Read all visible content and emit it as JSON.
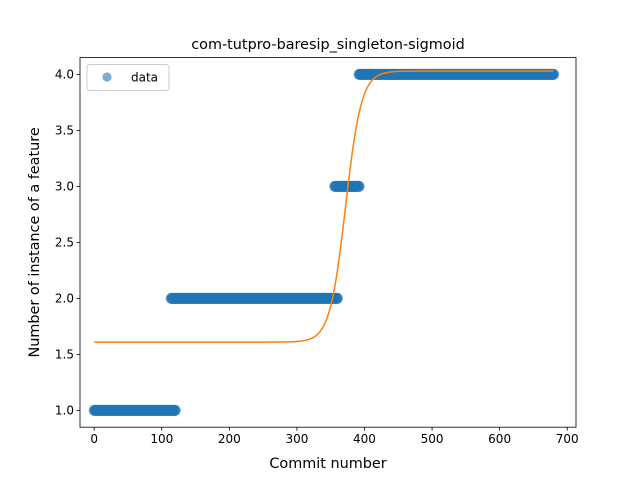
{
  "chart_data": {
    "type": "scatter",
    "title": "com-tutpro-baresip_singleton-sigmoid",
    "xlabel": "Commit number",
    "ylabel": "Number of instance of a feature",
    "xlim": [
      -21,
      713
    ],
    "ylim": [
      0.85,
      4.15
    ],
    "xticks": [
      0,
      100,
      200,
      300,
      400,
      500,
      600,
      700
    ],
    "xtick_labels": [
      "0",
      "100",
      "200",
      "300",
      "400",
      "500",
      "600",
      "700"
    ],
    "yticks": [
      1.0,
      1.5,
      2.0,
      2.5,
      3.0,
      3.5,
      4.0
    ],
    "ytick_labels": [
      "1.0",
      "1.5",
      "2.0",
      "2.5",
      "3.0",
      "3.5",
      "4.0"
    ],
    "grid": false,
    "legend": {
      "placement": "upper-left",
      "entries": [
        {
          "label": "data",
          "marker": "circle",
          "color": "#1f77b4"
        }
      ]
    },
    "series": [
      {
        "name": "data",
        "kind": "scatter",
        "color": "#1f77b4",
        "segments": [
          {
            "x_start": 0,
            "x_end": 120,
            "y": 1.0
          },
          {
            "x_start": 114,
            "x_end": 360,
            "y": 2.0
          },
          {
            "x_start": 356,
            "x_end": 392,
            "y": 3.0
          },
          {
            "x_start": 392,
            "x_end": 680,
            "y": 4.0
          }
        ]
      },
      {
        "kind": "line",
        "color": "#ff7f0e",
        "x_start": 0,
        "x_end": 680,
        "model": "sigmoid",
        "params": {
          "lower": 1.61,
          "upper": 4.03,
          "midpoint": 372,
          "slope": 0.085
        }
      }
    ]
  }
}
